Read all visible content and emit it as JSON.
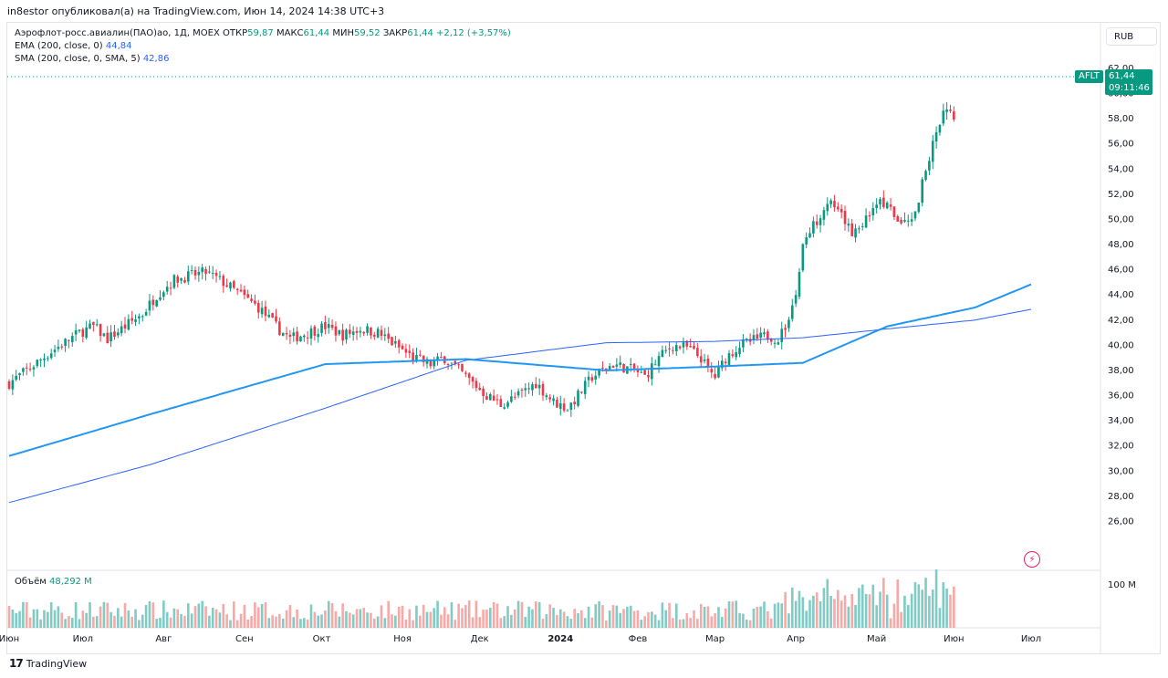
{
  "header": {
    "publish_line": "in8estor опубликовал(а) на TradingView.com, Июн 14, 2024 14:38 UTC+3"
  },
  "legend": {
    "symbol": "Аэрофлот-росс.авиалин(ПАО)ао, 1Д, MOEX",
    "open_label": "ОТКР",
    "open_value": "59,87",
    "high_label": "МАКС",
    "high_value": "61,44",
    "low_label": "МИН",
    "low_value": "59,52",
    "close_label": "ЗАКР",
    "close_value": "61,44",
    "change": "+2,12 (+3,57%)",
    "ema_label": "EMA (200, close, 0)",
    "ema_value": "44,84",
    "sma_label": "SMA (200, close, 0, SMA, 5)",
    "sma_value": "42,86"
  },
  "currency_button": "RUB",
  "price_tag": {
    "ticker": "AFLT",
    "price": "61,44",
    "countdown": "09:11:46"
  },
  "volume": {
    "label": "Объём",
    "value": "48,292 M",
    "axis_label": "100 M"
  },
  "footer": {
    "brand": "TradingView",
    "mark": "17"
  },
  "icons": {
    "lightning": "lightning-icon",
    "logo": "tradingview-logo-icon"
  },
  "colors": {
    "up": "#089981",
    "down": "#f23645",
    "ema": "#2196f3",
    "sma": "#2962ff",
    "vol_up": "#80cbc4",
    "vol_down": "#f7a9a7"
  },
  "chart_data": {
    "type": "candlestick",
    "title": "",
    "xlabel": "",
    "ylabel": "",
    "ylim": [
      24,
      62
    ],
    "y_ticks": [
      "26,00",
      "28,00",
      "30,00",
      "32,00",
      "34,00",
      "36,00",
      "38,00",
      "40,00",
      "42,00",
      "44,00",
      "46,00",
      "48,00",
      "50,00",
      "52,00",
      "54,00",
      "56,00",
      "58,00",
      "60,00",
      "62,00"
    ],
    "x_ticks": [
      "Июн",
      "Июл",
      "Авг",
      "Сен",
      "Окт",
      "Ноя",
      "Дек",
      "2024",
      "Фев",
      "Мар",
      "Апр",
      "Май",
      "Июн",
      "Июл"
    ],
    "x_tick_positions": [
      0,
      21,
      44,
      67,
      89,
      112,
      134,
      157,
      179,
      201,
      224,
      247,
      269,
      291
    ],
    "last_bar_index": 269,
    "price_path": [
      [
        0,
        37.0
      ],
      [
        5,
        38.0
      ],
      [
        12,
        39.5
      ],
      [
        20,
        41.0
      ],
      [
        24,
        41.5
      ],
      [
        28,
        40.5
      ],
      [
        33,
        41.5
      ],
      [
        38,
        42.5
      ],
      [
        42,
        44.0
      ],
      [
        47,
        45.2
      ],
      [
        51,
        45.5
      ],
      [
        56,
        45.8
      ],
      [
        61,
        45.0
      ],
      [
        66,
        44.0
      ],
      [
        71,
        43.0
      ],
      [
        76,
        41.5
      ],
      [
        80,
        40.5
      ],
      [
        85,
        41.0
      ],
      [
        90,
        41.5
      ],
      [
        95,
        40.8
      ],
      [
        100,
        41.3
      ],
      [
        105,
        41.0
      ],
      [
        110,
        40.0
      ],
      [
        115,
        39.0
      ],
      [
        120,
        38.5
      ],
      [
        124,
        39.0
      ],
      [
        128,
        38.0
      ],
      [
        132,
        37.0
      ],
      [
        136,
        36.0
      ],
      [
        140,
        35.3
      ],
      [
        145,
        36.0
      ],
      [
        150,
        37.0
      ],
      [
        155,
        35.5
      ],
      [
        159,
        35.0
      ],
      [
        162,
        36.0
      ],
      [
        166,
        37.5
      ],
      [
        172,
        38.5
      ],
      [
        178,
        38.0
      ],
      [
        181,
        37.5
      ],
      [
        185,
        39.0
      ],
      [
        189,
        40.0
      ],
      [
        193,
        39.8
      ],
      [
        197,
        39.0
      ],
      [
        199,
        38.0
      ],
      [
        201,
        37.5
      ],
      [
        204,
        39.0
      ],
      [
        208,
        40.0
      ],
      [
        213,
        40.5
      ],
      [
        216,
        40.8
      ],
      [
        219,
        40.5
      ],
      [
        221,
        41.5
      ],
      [
        224,
        44.0
      ],
      [
        226,
        48.0
      ],
      [
        230,
        50.0
      ],
      [
        233,
        51.5
      ],
      [
        236,
        50.5
      ],
      [
        240,
        49.0
      ],
      [
        244,
        50.0
      ],
      [
        247,
        51.5
      ],
      [
        250,
        51.0
      ],
      [
        254,
        49.5
      ],
      [
        258,
        50.5
      ],
      [
        261,
        54.0
      ],
      [
        264,
        57.0
      ],
      [
        267,
        59.0
      ],
      [
        270,
        58.0
      ],
      [
        273,
        56.0
      ],
      [
        276,
        55.0
      ],
      [
        279,
        53.5
      ],
      [
        282,
        56.0
      ],
      [
        285,
        58.0
      ],
      [
        287,
        57.5
      ],
      [
        288,
        58.5
      ],
      [
        290,
        59.5
      ],
      [
        291,
        61.44
      ]
    ],
    "ema200_path": [
      [
        0,
        31.2
      ],
      [
        40,
        34.5
      ],
      [
        90,
        38.5
      ],
      [
        130,
        38.9
      ],
      [
        170,
        38.0
      ],
      [
        200,
        38.3
      ],
      [
        226,
        38.6
      ],
      [
        250,
        41.5
      ],
      [
        275,
        43.0
      ],
      [
        291,
        44.84
      ]
    ],
    "sma200_path": [
      [
        0,
        27.5
      ],
      [
        40,
        30.5
      ],
      [
        90,
        35.0
      ],
      [
        130,
        38.8
      ],
      [
        170,
        40.2
      ],
      [
        200,
        40.3
      ],
      [
        226,
        40.6
      ],
      [
        250,
        41.3
      ],
      [
        275,
        42.0
      ],
      [
        291,
        42.86
      ]
    ]
  }
}
